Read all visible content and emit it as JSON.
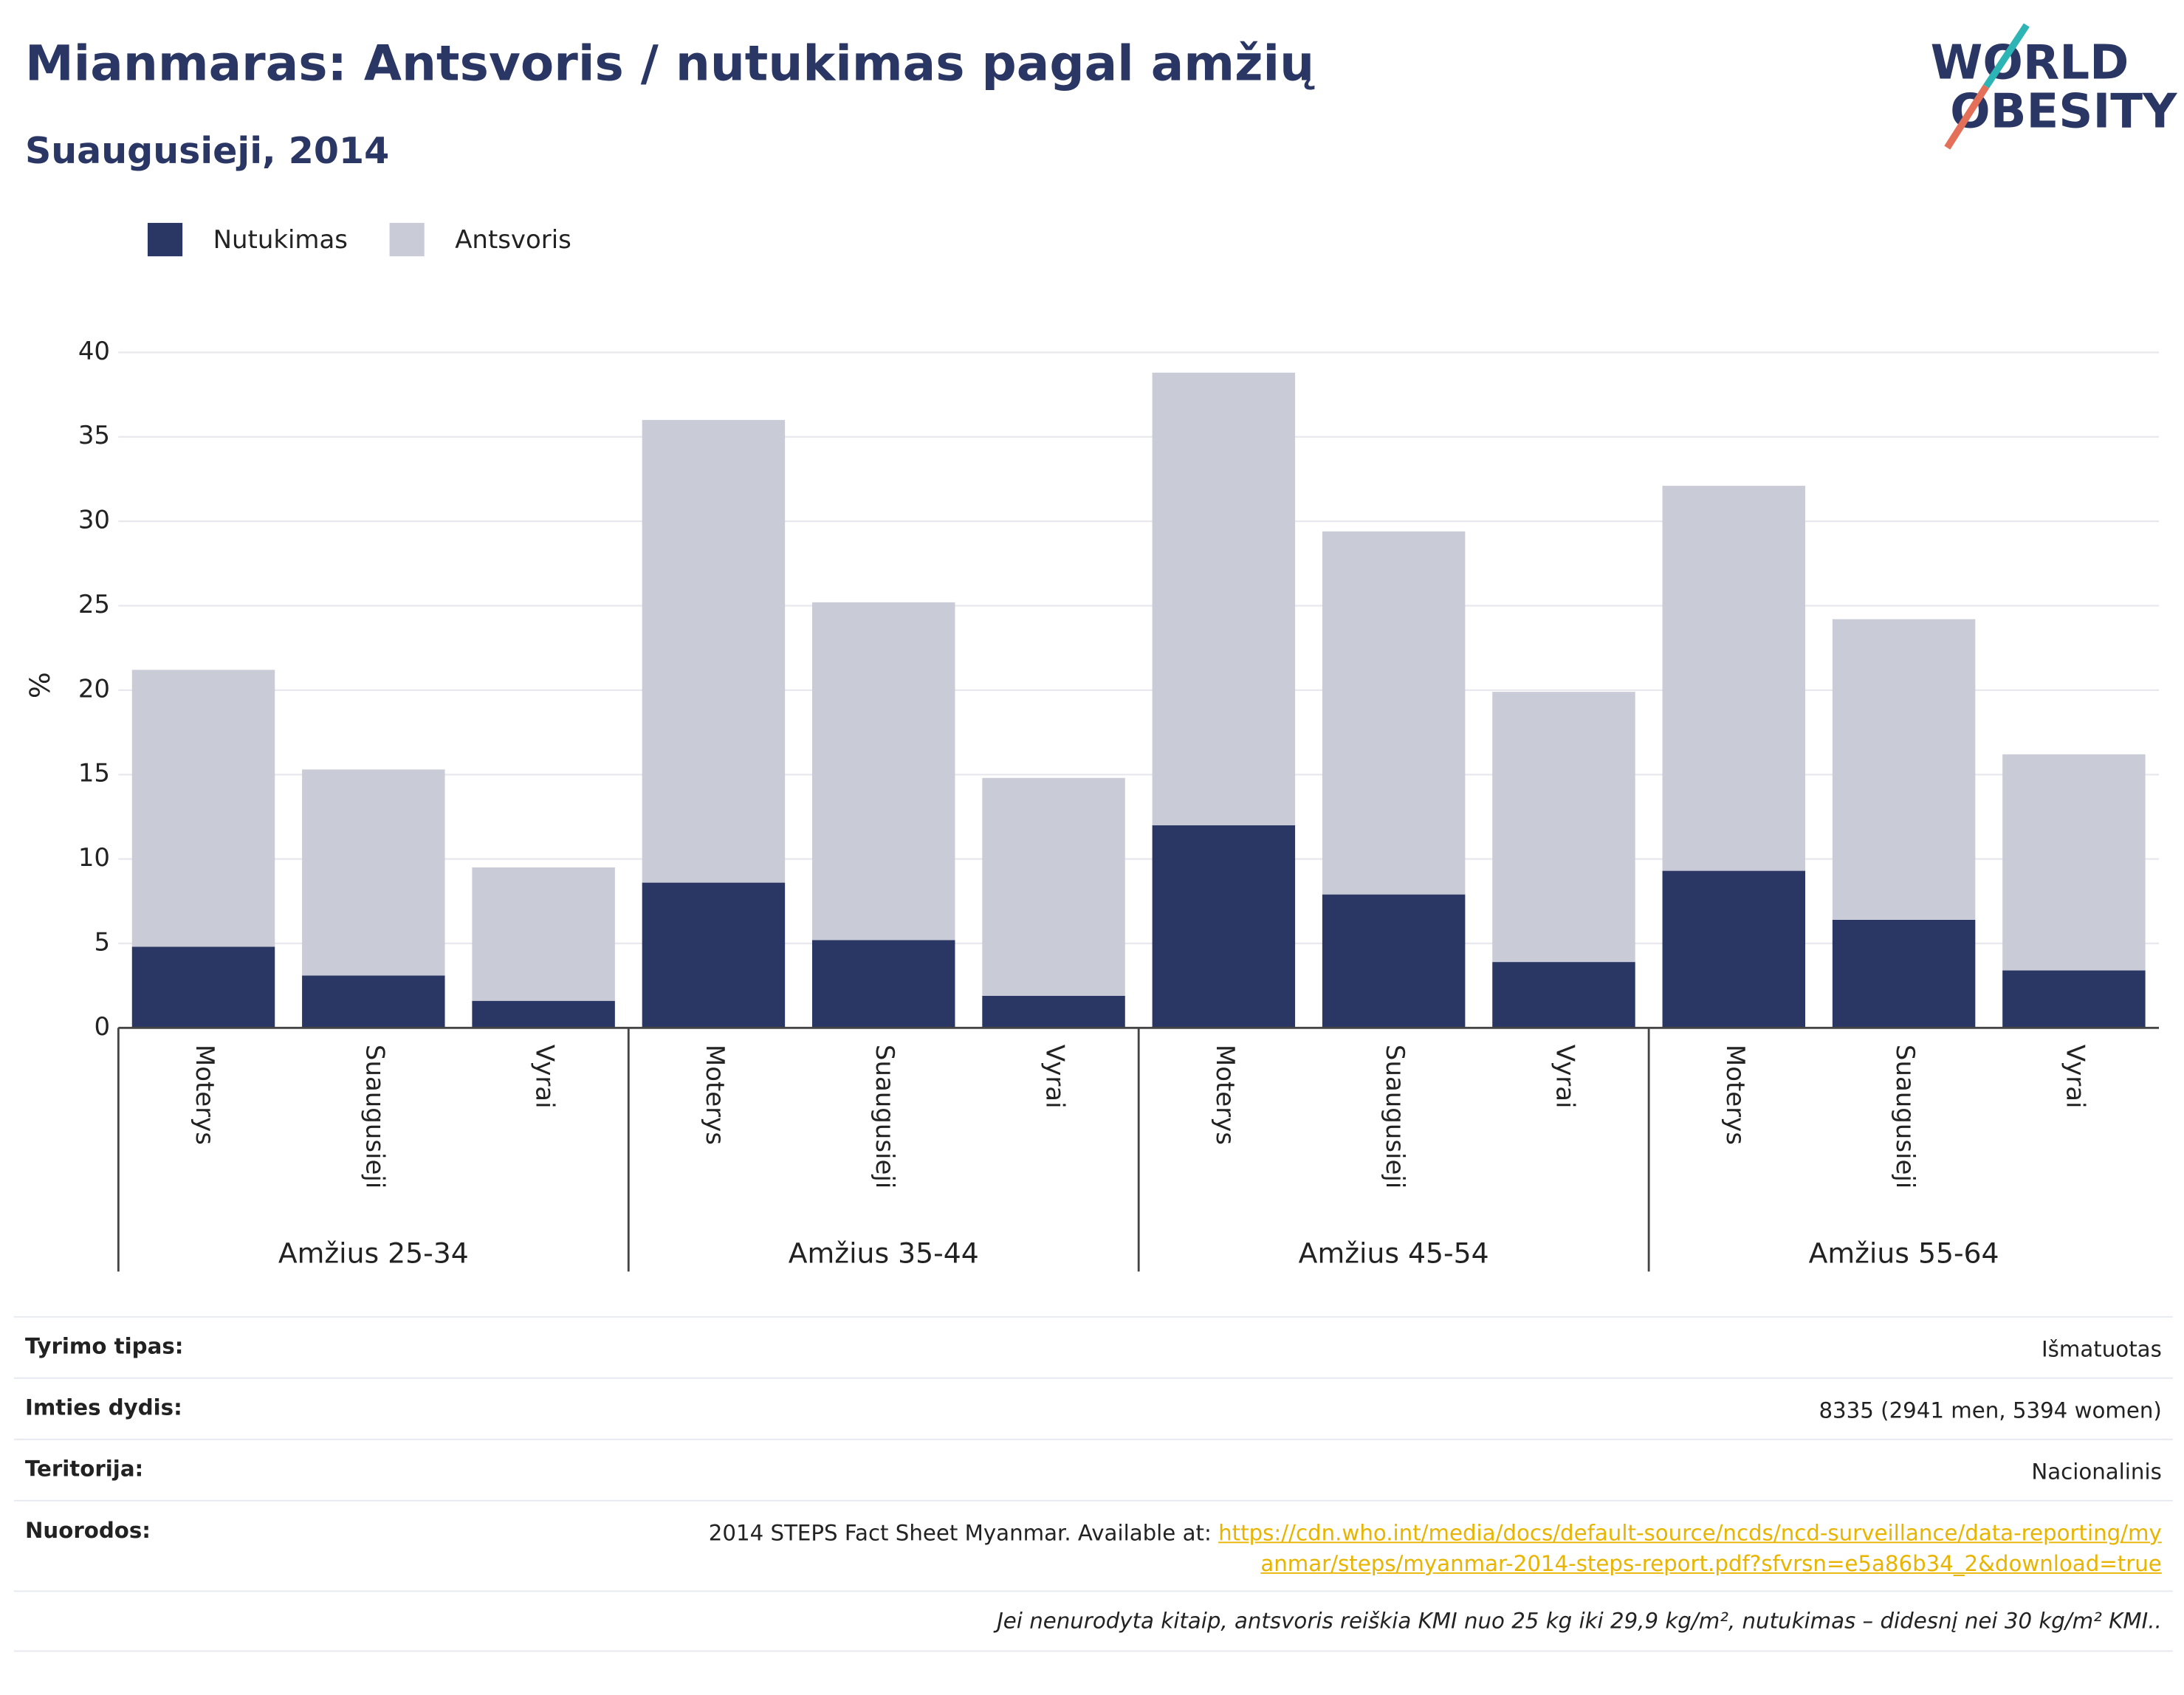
{
  "chart_data": {
    "type": "stacked_bar",
    "title": "Mianmaras: Antsvoris / nutukimas pagal amžių",
    "subtitle": "Suaugusieji, 2014",
    "y_label": "%",
    "categories": [
      "Moterys",
      "Suaugusieji",
      "Vyrai",
      "Moterys",
      "Suaugusieji",
      "Vyrai",
      "Moterys",
      "Suaugusieji",
      "Vyrai",
      "Moterys",
      "Suaugusieji",
      "Vyrai"
    ],
    "groups": [
      "Amžius 25-34",
      "Amžius 35-44",
      "Amžius 45-54",
      "Amžius 55-64"
    ],
    "series": [
      {
        "name": "Nutukimas",
        "color": "#2a3664",
        "values": [
          4.8,
          3.1,
          1.6,
          8.6,
          5.2,
          1.9,
          12.0,
          7.9,
          3.9,
          9.3,
          6.4,
          3.4
        ]
      },
      {
        "name": "Antsvoris",
        "color": "#c9cbd7",
        "values": [
          16.4,
          12.2,
          7.9,
          27.4,
          20.0,
          12.9,
          26.8,
          21.5,
          16.0,
          22.8,
          17.8,
          12.8
        ]
      }
    ],
    "ylim": [
      0,
      40
    ],
    "yticks": [
      0,
      5,
      10,
      15,
      20,
      25,
      30,
      35,
      40
    ],
    "grid": true,
    "legend": "top-left"
  },
  "logo": {
    "line1": "WORLD",
    "line2": "OBESITY"
  },
  "info": {
    "rows": [
      {
        "label": "Tyrimo tipas:",
        "value": "Išmatuotas"
      },
      {
        "label": "Imties dydis:",
        "value": "8335 (2941 men, 5394 women)"
      },
      {
        "label": "Teritorija:",
        "value": "Nacionalinis"
      },
      {
        "label": "Nuorodos:",
        "value": "2014 STEPS Fact Sheet Myanmar. Available at:",
        "link": "https://cdn.who.int/media/docs/default-source/ncds/ncd-surveillance/data-reporting/myanmar/steps/myanmar-2014-steps-report.pdf?sfvrsn=e5a86b34_2&download=true"
      }
    ],
    "note": "Jei nenurodyta kitaip, antsvoris reiškia KMI nuo 25 kg iki 29,9 kg/m², nutukimas – didesnį nei 30 kg/m² KMI.."
  }
}
